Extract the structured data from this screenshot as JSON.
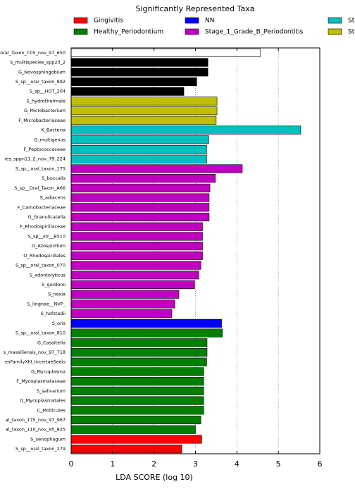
{
  "chart_data": {
    "type": "barh",
    "title": "Significantly Represented Taxa",
    "xlabel": "LDA SCORE (log 10)",
    "legend": [
      {
        "name": "Gingivitis",
        "color": "#ff0000"
      },
      {
        "name": "Healthy_Periodontium",
        "color": "#007f00"
      },
      {
        "name": "NN",
        "color": "#0000ff"
      },
      {
        "name": "Stage_1_Grade_B_Periodontitis",
        "color": "#bf00bf"
      },
      {
        "name": "St",
        "color": "#00bfbf"
      },
      {
        "name": "St",
        "color": "#bfbf00"
      }
    ],
    "categories": [
      "oral_Taxon_C05_nov_97_650",
      "S_multispecies_spp23_2",
      "G_Novosphingobium",
      "S_sp__oral_taxon_892",
      "S_sp__HOT_204",
      "S_hydrothermale",
      "G_Microbacterium",
      "F_Microbacteriaceae",
      "K_Bacteria",
      "G_multigenus",
      "F_Peptococcaceae",
      "ies_sppn11_2_nov_79_224",
      "S_sp__oral_taxon_175",
      "S_buccalis",
      "S_sp__Oral_Taxon_A66",
      "S_adiacens",
      "F_Carnobacteriaceae",
      "G_Granulicatella",
      "F_Rhodospirillaceae",
      "S_sp__str__B510",
      "G_Azospirillum",
      "O_Rhodospirillales",
      "S_sp__oral_taxon_070",
      "S_odontolyticus",
      "S_gordonii",
      "S_noxia",
      "S_lingnae__NVP_",
      "S_hofstadii",
      "S_oris",
      "S_sp__oral_taxon_810",
      "G_Casaltella",
      "s_massiliensis_nov_97_718",
      "esFamilyXIII_IncertaeSedis",
      "G_Mycoplasma",
      "F_Mycoplasmataceae",
      "S_salivarium",
      "O_Mycoplasmatales",
      "C_Mollicutes",
      "al_taxon_175_nov_97_967",
      "al_taxon_110_nov_95_825",
      "S_xenophagum",
      "S_sp__oral_taxon_279"
    ],
    "values": [
      4.56,
      3.3,
      3.3,
      3.03,
      2.72,
      3.52,
      3.52,
      3.5,
      5.54,
      3.32,
      3.27,
      3.27,
      4.13,
      3.48,
      3.35,
      3.33,
      3.33,
      3.33,
      3.17,
      3.17,
      3.17,
      3.17,
      3.13,
      3.08,
      2.98,
      2.6,
      2.5,
      2.43,
      3.63,
      3.65,
      3.28,
      3.28,
      3.27,
      3.2,
      3.2,
      3.2,
      3.2,
      3.2,
      3.13,
      3.0,
      3.15,
      2.67
    ],
    "colors": [
      "#ffffff",
      "#000000",
      "#000000",
      "#000000",
      "#000000",
      "#bfbf00",
      "#bfbf00",
      "#bfbf00",
      "#00bfbf",
      "#00bfbf",
      "#00bfbf",
      "#00bfbf",
      "#bf00bf",
      "#bf00bf",
      "#bf00bf",
      "#bf00bf",
      "#bf00bf",
      "#bf00bf",
      "#bf00bf",
      "#bf00bf",
      "#bf00bf",
      "#bf00bf",
      "#bf00bf",
      "#bf00bf",
      "#bf00bf",
      "#bf00bf",
      "#bf00bf",
      "#bf00bf",
      "#0000ff",
      "#007f00",
      "#007f00",
      "#007f00",
      "#007f00",
      "#007f00",
      "#007f00",
      "#007f00",
      "#007f00",
      "#007f00",
      "#007f00",
      "#007f00",
      "#ff0000",
      "#ff0000"
    ],
    "xlim": [
      0,
      6
    ],
    "xticks": [
      0,
      1,
      2,
      3,
      4,
      5,
      6
    ],
    "grid": true
  }
}
